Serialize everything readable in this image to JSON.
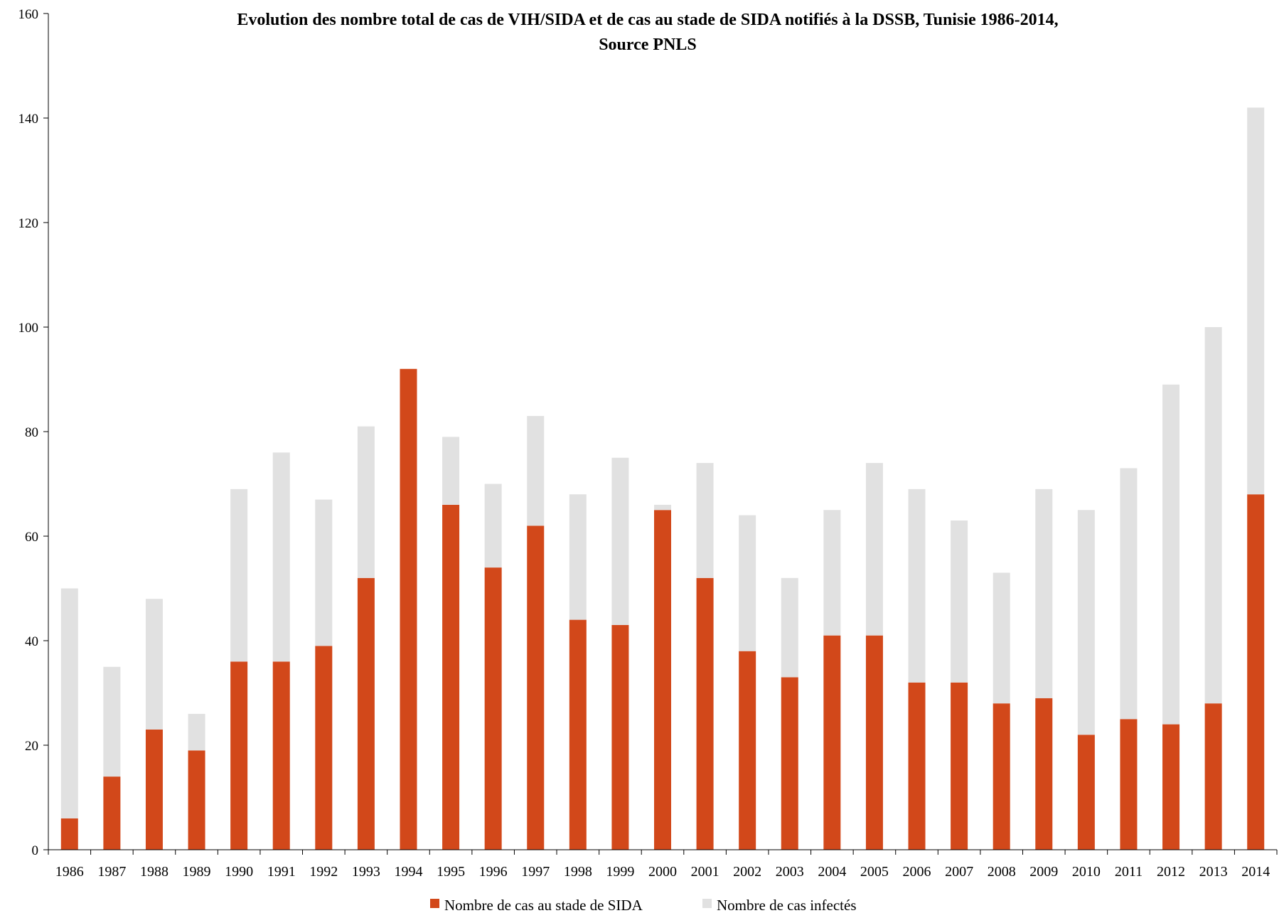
{
  "chart_data": {
    "type": "bar",
    "stacked": true,
    "title": "Evolution des nombre total de cas de VIH/SIDA et  de cas au stade de SIDA notifiés à la DSSB, Tunisie 1986-2014,",
    "subtitle": "Source PNLS",
    "xlabel": "",
    "ylabel": "",
    "ylim": [
      0,
      160
    ],
    "yticks": [
      "0",
      "20",
      "40",
      "60",
      "80",
      "100",
      "120",
      "140",
      "160"
    ],
    "grid": false,
    "legend_position": "bottom",
    "categories": [
      "1986",
      "1987",
      "1988",
      "1989",
      "1990",
      "1991",
      "1992",
      "1993",
      "1994",
      "1995",
      "1996",
      "1997",
      "1998",
      "1999",
      "2000",
      "2001",
      "2002",
      "2003",
      "2004",
      "2005",
      "2006",
      "2007",
      "2008",
      "2009",
      "2010",
      "2011",
      "2012",
      "2013",
      "2014"
    ],
    "series": [
      {
        "name": "Nombre de cas au stade de SIDA",
        "color": "#d2481a",
        "values": [
          6,
          14,
          23,
          19,
          36,
          36,
          39,
          52,
          92,
          66,
          54,
          62,
          44,
          43,
          65,
          52,
          38,
          33,
          41,
          41,
          32,
          32,
          28,
          29,
          22,
          25,
          24,
          28,
          68
        ]
      },
      {
        "name": "Nombre de cas infectés",
        "color": "#e1e1e1",
        "values": [
          44,
          21,
          25,
          7,
          33,
          40,
          28,
          29,
          0,
          13,
          16,
          21,
          24,
          32,
          1,
          22,
          26,
          19,
          24,
          33,
          37,
          31,
          25,
          40,
          43,
          48,
          65,
          72,
          74
        ]
      }
    ]
  }
}
